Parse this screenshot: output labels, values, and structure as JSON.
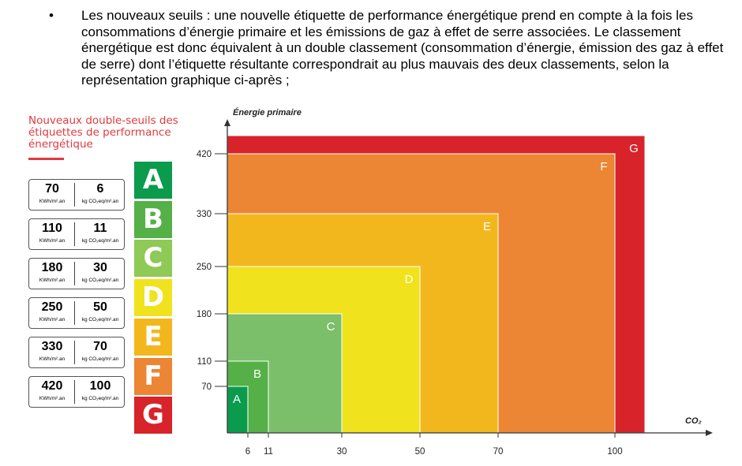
{
  "paragraph": {
    "bullet": "•",
    "text": "Les nouveaux seuils : une nouvelle étiquette de performance énergétique prend en compte à la fois les consommations d’énergie primaire et les émissions de gaz à effet de serre associées. Le classement énergétique est donc équivalent à un double classement (consommation d’énergie, émission des gaz à effet de serre) dont l’étiquette résultante correspondrait au plus mauvais des deux classements, selon la représentation graphique ci-après ;"
  },
  "legend": {
    "title": "Nouveaux double-seuils des étiquettes de performance énergétique",
    "unit_energy": "KWh/m².an",
    "unit_co2": "kg CO₂eq/m².an",
    "thresholds": [
      {
        "energy": "70",
        "co2": "6"
      },
      {
        "energy": "110",
        "co2": "11"
      },
      {
        "energy": "180",
        "co2": "30"
      },
      {
        "energy": "250",
        "co2": "50"
      },
      {
        "energy": "330",
        "co2": "70"
      },
      {
        "energy": "420",
        "co2": "100"
      }
    ],
    "classes": [
      {
        "letter": "A",
        "color": "#0b9b4d"
      },
      {
        "letter": "B",
        "color": "#54b047"
      },
      {
        "letter": "C",
        "color": "#8fc956"
      },
      {
        "letter": "D",
        "color": "#f0e21c"
      },
      {
        "letter": "E",
        "color": "#f3b71e"
      },
      {
        "letter": "F",
        "color": "#ec8534"
      },
      {
        "letter": "G",
        "color": "#d8232a"
      }
    ]
  },
  "chart_data": {
    "type": "area",
    "ylabel": "Énergie primaire",
    "xlabel": "CO₂",
    "x_ticks": [
      6,
      11,
      30,
      50,
      70,
      100
    ],
    "y_ticks": [
      70,
      110,
      180,
      250,
      330,
      420
    ],
    "zones": [
      {
        "label": "G",
        "co2_max": 105,
        "energy_max": 440,
        "color": "#d8232a"
      },
      {
        "label": "F",
        "co2_max": 100,
        "energy_max": 420,
        "color": "#ec8534"
      },
      {
        "label": "E",
        "co2_max": 70,
        "energy_max": 330,
        "color": "#f3b71e"
      },
      {
        "label": "D",
        "co2_max": 50,
        "energy_max": 250,
        "color": "#f0e21c"
      },
      {
        "label": "C",
        "co2_max": 30,
        "energy_max": 180,
        "color": "#7cbf6a"
      },
      {
        "label": "B",
        "co2_max": 11,
        "energy_max": 110,
        "color": "#54b047"
      },
      {
        "label": "A",
        "co2_max": 6,
        "energy_max": 70,
        "color": "#0b9b4d"
      }
    ]
  }
}
